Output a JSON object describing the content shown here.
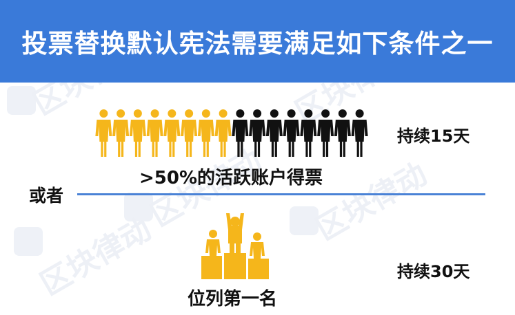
{
  "banner": {
    "title": "投票替换默认宪法需要满足如下条件之一"
  },
  "condition_1": {
    "caption": ">50%的活跃账户得票",
    "duration": "持续15天",
    "people_highlighted": 8,
    "people_total": 16
  },
  "separator": {
    "label": "或者"
  },
  "condition_2": {
    "caption": "位列第一名",
    "duration": "持续30天"
  },
  "watermark": {
    "text": "区块律动"
  },
  "colors": {
    "banner": "#3a7ad9",
    "highlight": "#f5b61b",
    "dark": "#111111",
    "divider": "#4a82d6"
  }
}
